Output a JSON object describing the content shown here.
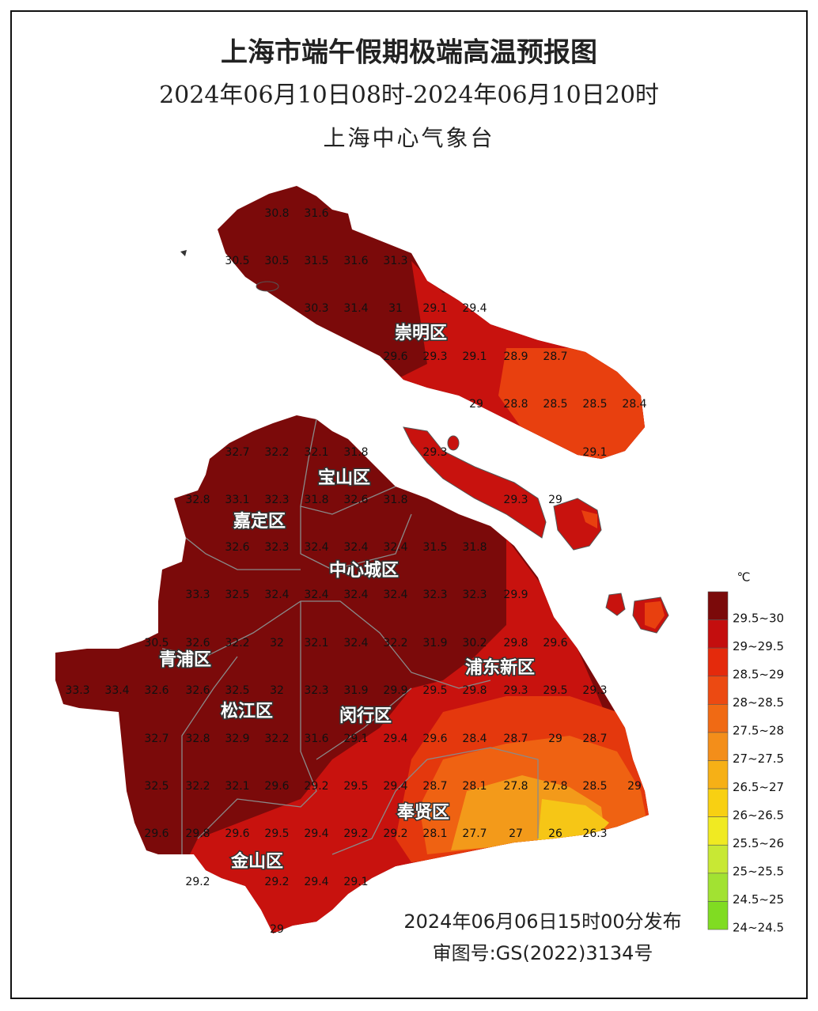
{
  "header": {
    "title": "上海市端午假期极端高温预报图",
    "period": "2024年06月10日08时-2024年06月10日20时",
    "issuer": "上海中心气象台"
  },
  "map": {
    "districts": [
      "崇明区",
      "宝山区",
      "嘉定区",
      "中心城区",
      "青浦区",
      "浦东新区",
      "松江区",
      "闵行区",
      "奉贤区",
      "金山区"
    ],
    "stations": [
      30.8,
      31.6,
      30.5,
      30.5,
      31.5,
      31.6,
      31.3,
      30.3,
      31.4,
      31,
      29.1,
      29.4,
      29.6,
      29.3,
      29.1,
      28.9,
      28.7,
      29,
      28.8,
      28.5,
      28.5,
      28.4,
      29.3,
      29.1,
      29.3,
      29,
      32.7,
      32.2,
      32.1,
      31.8,
      32.8,
      33.1,
      32.3,
      31.8,
      32.6,
      31.8,
      32.6,
      32.3,
      32.4,
      32.4,
      32.4,
      31.5,
      31.8,
      33.3,
      32.5,
      32.4,
      32.4,
      32.4,
      32.4,
      32.3,
      32.3,
      29.9,
      30.5,
      32.6,
      32.2,
      32,
      32.1,
      32.4,
      32.2,
      31.9,
      30.2,
      29.8,
      29.6,
      33.3,
      33.4,
      32.6,
      32.6,
      32.5,
      32,
      32.3,
      31.9,
      29.9,
      29.5,
      29.8,
      29.3,
      29.5,
      29.3,
      32.7,
      32.8,
      32.9,
      32.2,
      31.6,
      29.1,
      29.4,
      29.6,
      28.4,
      28.7,
      29,
      28.7,
      32.5,
      32.2,
      32.1,
      29.6,
      29.2,
      29.5,
      29.4,
      28.7,
      28.1,
      27.8,
      27.8,
      28.5,
      29,
      29.6,
      29.8,
      29.6,
      29.5,
      29.4,
      29.2,
      29.2,
      28.1,
      27.7,
      27,
      26,
      26.3,
      29.2,
      29.2,
      29.4,
      29.1,
      29
    ]
  },
  "legend": {
    "unit": "℃",
    "items": [
      {
        "label": "29.5~30",
        "color": "#7b0a0a"
      },
      {
        "label": "29~29.5",
        "color": "#c40e0e"
      },
      {
        "label": "28.5~29",
        "color": "#e42a0c"
      },
      {
        "label": "28~28.5",
        "color": "#ec4a12"
      },
      {
        "label": "27.5~28",
        "color": "#f06a14"
      },
      {
        "label": "27~27.5",
        "color": "#f38e1a"
      },
      {
        "label": "26.5~27",
        "color": "#f6b016"
      },
      {
        "label": "26~26.5",
        "color": "#f8d012"
      },
      {
        "label": "25.5~26",
        "color": "#f0ea22"
      },
      {
        "label": "25~25.5",
        "color": "#c8e834"
      },
      {
        "label": "24.5~25",
        "color": "#a2e232"
      },
      {
        "label": "24~24.5",
        "color": "#80dc22"
      }
    ]
  },
  "footer": {
    "issued": "2024年06月06日15时00分发布",
    "approval": "审图号:GS(2022)3134号"
  }
}
